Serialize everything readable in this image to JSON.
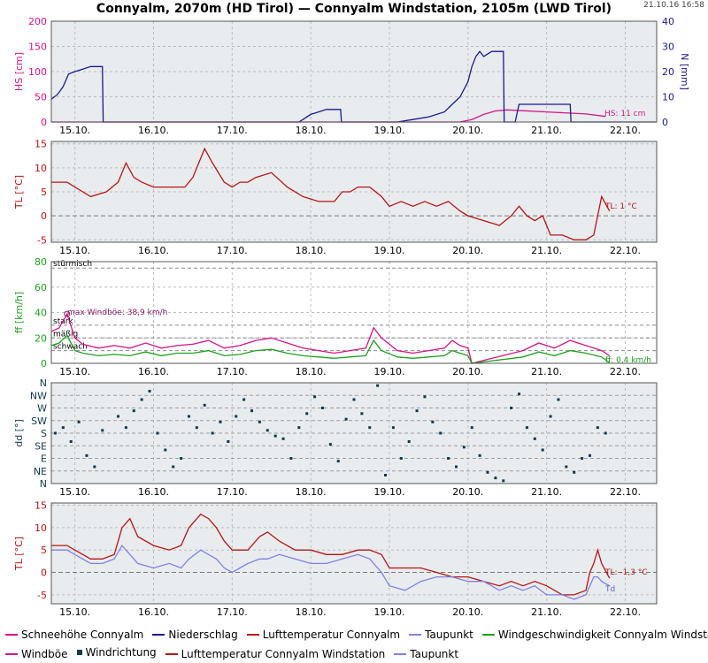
{
  "header": {
    "title": "Connyalm, 2070m (HD Tirol) — Connyalm Windstation, 2105m (LWD Tirol)",
    "timestamp": "21.10.16 16:58"
  },
  "legend": {
    "row1": [
      {
        "label": "Schneehöhe Connyalm",
        "color": "#d4148a",
        "kind": "line"
      },
      {
        "label": "Niederschlag",
        "color": "#1a1a8c",
        "kind": "line"
      },
      {
        "label": "Lufttemperatur Connyalm",
        "color": "#b81414",
        "kind": "line"
      },
      {
        "label": "Taupunkt",
        "color": "#8080e6",
        "kind": "line"
      },
      {
        "label": "Windgeschwindigkeit Connyalm Windstation",
        "color": "#20a020",
        "kind": "line"
      }
    ],
    "row2": [
      {
        "label": "Windböe",
        "color": "#d4148a",
        "kind": "line"
      },
      {
        "label": "Windrichtung",
        "color": "#0d3b4a",
        "kind": "square"
      },
      {
        "label": "Lufttemperatur Connyalm Windstation",
        "color": "#b81414",
        "kind": "line"
      },
      {
        "label": "Taupunkt",
        "color": "#8080e6",
        "kind": "line"
      }
    ]
  },
  "chart_data": [
    {
      "type": "line",
      "id": "snow_precip",
      "x_tick_labels": [
        "15.10.",
        "16.10.",
        "17.10.",
        "18.10.",
        "19.10.",
        "20.10.",
        "21.10.",
        "22.10."
      ],
      "xlim": [
        14.7,
        22.4
      ],
      "ylabel": "HS [cm]",
      "ylim": [
        0,
        200
      ],
      "yticks": [
        0,
        50,
        100,
        150,
        200
      ],
      "ylabel_right": "N [mm]",
      "ylim_right": [
        0,
        40
      ],
      "yticks_right": [
        0,
        10,
        20,
        30,
        40
      ],
      "annotation": "HS: 11 cm",
      "series": [
        {
          "name": "Schneehöhe Connyalm",
          "axis": "left",
          "color": "#d4148a",
          "x": [
            14.7,
            19.9,
            20.05,
            20.2,
            20.35,
            20.5,
            21.0,
            21.5,
            21.75
          ],
          "y": [
            0,
            0,
            5,
            15,
            22,
            24,
            20,
            16,
            11
          ]
        },
        {
          "name": "Niederschlag",
          "axis": "right",
          "color": "#1a1a8c",
          "x": [
            14.7,
            14.78,
            14.85,
            14.92,
            15.0,
            15.1,
            15.2,
            15.35,
            15.36,
            17.85,
            17.9,
            18.0,
            18.1,
            18.2,
            18.38,
            18.39,
            19.1,
            19.3,
            19.5,
            19.7,
            19.8,
            19.9,
            20.0,
            20.05,
            20.1,
            20.15,
            20.2,
            20.3,
            20.35,
            20.45,
            20.46,
            20.6,
            20.65,
            20.66,
            21.3,
            21.31,
            22.4
          ],
          "y": [
            9,
            11,
            14,
            19,
            20,
            21,
            22,
            22,
            0,
            0,
            1,
            3,
            4,
            5,
            5,
            0,
            0,
            1,
            2,
            4,
            7,
            10,
            16,
            22,
            26,
            28,
            26,
            28,
            28,
            28,
            0,
            0,
            7,
            7,
            7,
            0,
            0
          ]
        }
      ]
    },
    {
      "type": "line",
      "id": "temperature_connyalm",
      "x_tick_labels": [
        "15.10.",
        "16.10.",
        "17.10.",
        "18.10.",
        "19.10.",
        "20.10.",
        "21.10.",
        "22.10."
      ],
      "xlim": [
        14.7,
        22.4
      ],
      "ylabel": "TL [°C]",
      "ylim": [
        -5.5,
        15.5
      ],
      "yticks": [
        -5,
        0,
        5,
        10,
        15
      ],
      "annotation": "TL: 1 °C",
      "series": [
        {
          "name": "Lufttemperatur Connyalm",
          "color": "#b81414",
          "x": [
            14.7,
            14.9,
            15.0,
            15.1,
            15.2,
            15.4,
            15.55,
            15.65,
            15.75,
            15.85,
            16.0,
            16.2,
            16.4,
            16.5,
            16.6,
            16.65,
            16.75,
            16.9,
            17.0,
            17.1,
            17.2,
            17.3,
            17.5,
            17.7,
            17.9,
            18.1,
            18.3,
            18.4,
            18.5,
            18.6,
            18.75,
            18.9,
            19.0,
            19.15,
            19.3,
            19.45,
            19.6,
            19.75,
            19.9,
            20.0,
            20.2,
            20.4,
            20.55,
            20.65,
            20.75,
            20.85,
            20.95,
            21.05,
            21.2,
            21.35,
            21.5,
            21.6,
            21.7,
            21.8
          ],
          "y": [
            7,
            7,
            6,
            5,
            4,
            5,
            7,
            11,
            8,
            7,
            6,
            6,
            6,
            8,
            12,
            14,
            11,
            7,
            6,
            7,
            7,
            8,
            9,
            6,
            4,
            3,
            3,
            5,
            5,
            6,
            6,
            4,
            2,
            3,
            2,
            3,
            2,
            3,
            1,
            0,
            -1,
            -2,
            0,
            2,
            0,
            -1,
            0,
            -4,
            -4,
            -5,
            -5,
            -4,
            4,
            1
          ]
        }
      ]
    },
    {
      "type": "line",
      "id": "wind_speed",
      "x_tick_labels": [
        "15.10.",
        "16.10.",
        "17.10.",
        "18.10.",
        "19.10.",
        "20.10.",
        "21.10.",
        "22.10."
      ],
      "xlim": [
        14.7,
        22.4
      ],
      "ylabel": "ff [km/h]",
      "ylim": [
        0,
        80
      ],
      "yticks": [
        0,
        20,
        40,
        60,
        80
      ],
      "reference_lines": [
        {
          "value": 75,
          "label": "stürmisch"
        },
        {
          "value": 30,
          "label": "stark"
        },
        {
          "value": 20,
          "label": "mäßig"
        },
        {
          "value": 10,
          "label": "schwach"
        }
      ],
      "annotations": [
        "max Windböe: 38,9 km/h",
        "ff: 0,4 km/h"
      ],
      "series": [
        {
          "name": "Windböe",
          "color": "#d4148a",
          "x": [
            14.7,
            14.8,
            14.9,
            15.0,
            15.1,
            15.3,
            15.5,
            15.7,
            15.9,
            16.1,
            16.3,
            16.5,
            16.7,
            16.9,
            17.1,
            17.3,
            17.5,
            17.7,
            17.9,
            18.1,
            18.3,
            18.5,
            18.7,
            18.8,
            18.9,
            19.1,
            19.3,
            19.5,
            19.7,
            19.8,
            19.9,
            20.0,
            20.05,
            20.7,
            20.9,
            21.1,
            21.3,
            21.5,
            21.7,
            21.8
          ],
          "y": [
            25,
            28,
            38.9,
            20,
            15,
            12,
            14,
            12,
            16,
            12,
            14,
            15,
            18,
            12,
            14,
            18,
            20,
            16,
            12,
            10,
            8,
            10,
            12,
            28,
            20,
            10,
            8,
            10,
            12,
            18,
            14,
            12,
            0,
            10,
            16,
            12,
            18,
            14,
            10,
            6
          ]
        },
        {
          "name": "Windgeschwindigkeit Connyalm Windstation",
          "color": "#20a020",
          "x": [
            14.7,
            14.8,
            14.9,
            15.0,
            15.1,
            15.3,
            15.5,
            15.7,
            15.9,
            16.1,
            16.3,
            16.5,
            16.7,
            16.9,
            17.1,
            17.3,
            17.5,
            17.7,
            17.9,
            18.1,
            18.3,
            18.5,
            18.7,
            18.8,
            18.9,
            19.1,
            19.3,
            19.5,
            19.7,
            19.8,
            19.9,
            20.0,
            20.05,
            20.7,
            20.9,
            21.1,
            21.3,
            21.5,
            21.7,
            21.8
          ],
          "y": [
            14,
            16,
            22,
            10,
            8,
            6,
            7,
            6,
            9,
            6,
            8,
            8,
            10,
            6,
            7,
            10,
            11,
            8,
            6,
            5,
            4,
            5,
            6,
            18,
            10,
            5,
            4,
            5,
            6,
            10,
            8,
            6,
            0,
            5,
            9,
            6,
            10,
            8,
            5,
            0.4
          ]
        }
      ]
    },
    {
      "type": "scatter",
      "id": "wind_direction",
      "x_tick_labels": [
        "15.10.",
        "16.10.",
        "17.10.",
        "18.10.",
        "19.10.",
        "20.10.",
        "21.10.",
        "22.10."
      ],
      "xlim": [
        14.7,
        22.4
      ],
      "ylabel": "dd [°]",
      "ylim": [
        0,
        360
      ],
      "y_tick_labels": [
        "N",
        "NE",
        "E",
        "SE",
        "S",
        "SW",
        "W",
        "NW",
        "N"
      ],
      "series": [
        {
          "name": "Windrichtung",
          "color": "#0d3b4a",
          "x": [
            14.75,
            14.85,
            14.95,
            15.05,
            15.15,
            15.25,
            15.35,
            15.55,
            15.65,
            15.75,
            15.85,
            15.95,
            16.05,
            16.15,
            16.25,
            16.35,
            16.45,
            16.55,
            16.65,
            16.75,
            16.85,
            16.95,
            17.05,
            17.15,
            17.25,
            17.35,
            17.45,
            17.55,
            17.65,
            17.75,
            17.85,
            17.95,
            18.05,
            18.15,
            18.25,
            18.35,
            18.45,
            18.55,
            18.65,
            18.75,
            18.85,
            18.95,
            19.05,
            19.15,
            19.25,
            19.35,
            19.45,
            19.55,
            19.65,
            19.75,
            19.85,
            19.95,
            20.05,
            20.15,
            20.25,
            20.35,
            20.45,
            20.55,
            20.65,
            20.75,
            20.85,
            20.95,
            21.05,
            21.15,
            21.25,
            21.35,
            21.45,
            21.55,
            21.65,
            21.75
          ],
          "y": [
            180,
            200,
            150,
            220,
            100,
            60,
            190,
            240,
            200,
            260,
            300,
            330,
            180,
            120,
            60,
            90,
            240,
            200,
            280,
            180,
            220,
            150,
            240,
            300,
            260,
            220,
            190,
            170,
            160,
            90,
            200,
            250,
            310,
            270,
            140,
            80,
            230,
            300,
            250,
            200,
            350,
            30,
            200,
            90,
            150,
            260,
            310,
            220,
            180,
            90,
            60,
            130,
            200,
            100,
            40,
            20,
            10,
            270,
            320,
            200,
            160,
            120,
            240,
            300,
            60,
            40,
            90,
            100,
            200,
            180
          ]
        }
      ]
    },
    {
      "type": "line",
      "id": "temperature_windstation",
      "x_tick_labels": [
        "15.10.",
        "16.10.",
        "17.10.",
        "18.10.",
        "19.10.",
        "20.10.",
        "21.10.",
        "22.10."
      ],
      "xlim": [
        14.7,
        22.4
      ],
      "ylabel": "TL [°C]",
      "ylim": [
        -7,
        15.5
      ],
      "yticks": [
        -5,
        0,
        5,
        10,
        15
      ],
      "annotations": [
        "TL: -1,3 °C",
        "Td"
      ],
      "series": [
        {
          "name": "Lufttemperatur Connyalm Windstation",
          "color": "#b81414",
          "x": [
            14.7,
            14.9,
            15.0,
            15.2,
            15.35,
            15.5,
            15.6,
            15.7,
            15.8,
            16.0,
            16.2,
            16.35,
            16.45,
            16.6,
            16.7,
            16.8,
            16.9,
            17.0,
            17.2,
            17.35,
            17.45,
            17.6,
            17.8,
            18.0,
            18.2,
            18.4,
            18.6,
            18.75,
            18.9,
            19.0,
            19.2,
            19.4,
            19.6,
            19.8,
            20.0,
            20.2,
            20.4,
            20.55,
            20.7,
            20.85,
            21.0,
            21.2,
            21.35,
            21.5,
            21.55,
            21.6,
            21.65,
            21.7,
            21.8
          ],
          "y": [
            6,
            6,
            5,
            3,
            3,
            4,
            10,
            12,
            8,
            6,
            5,
            6,
            10,
            13,
            12,
            10,
            7,
            5,
            5,
            8,
            9,
            7,
            5,
            5,
            4,
            4,
            5,
            5,
            4,
            1,
            1,
            1,
            0,
            -1,
            -1,
            -2,
            -3,
            -2,
            -3,
            -2,
            -3,
            -5,
            -5,
            -4,
            0,
            2,
            5,
            2,
            -1.3
          ]
        },
        {
          "name": "Taupunkt",
          "color": "#8080e6",
          "x": [
            14.7,
            14.9,
            15.0,
            15.2,
            15.35,
            15.5,
            15.6,
            15.7,
            15.8,
            16.0,
            16.2,
            16.35,
            16.45,
            16.6,
            16.7,
            16.8,
            16.9,
            17.0,
            17.2,
            17.35,
            17.45,
            17.6,
            17.8,
            18.0,
            18.2,
            18.4,
            18.6,
            18.75,
            18.9,
            19.0,
            19.2,
            19.4,
            19.6,
            19.8,
            20.0,
            20.2,
            20.4,
            20.55,
            20.7,
            20.85,
            21.0,
            21.2,
            21.35,
            21.5,
            21.55,
            21.6,
            21.65,
            21.7,
            21.8
          ],
          "y": [
            5,
            5,
            4,
            2,
            2,
            3,
            6,
            4,
            2,
            1,
            2,
            1,
            3,
            5,
            4,
            3,
            1,
            0,
            2,
            3,
            3,
            4,
            3,
            2,
            2,
            3,
            4,
            3,
            0,
            -3,
            -4,
            -2,
            -1,
            -1,
            -2,
            -2,
            -4,
            -3,
            -4,
            -3,
            -5,
            -5,
            -6,
            -5,
            -3,
            -1,
            -1,
            -2,
            -3
          ]
        }
      ]
    }
  ]
}
